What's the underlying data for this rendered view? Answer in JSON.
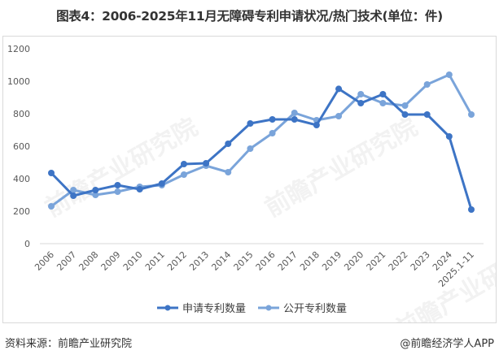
{
  "title": "图表4：2006-2025年11月无障碍专利申请状况/热门技术(单位：件)",
  "footer": {
    "source": "资料来源：前瞻产业研究院",
    "credit": "@前瞻经济学人APP"
  },
  "watermark": "前瞻产业研究院",
  "colors": {
    "application": "#3d74c5",
    "publication": "#7aa4da",
    "grid": "#d9d9d9",
    "axis_text": "#595959"
  },
  "chart_data": {
    "type": "line",
    "title": "图表4：2006-2025年11月无障碍专利申请状况/热门技术(单位：件)",
    "xlabel": "",
    "ylabel": "",
    "ylim": [
      0,
      1200
    ],
    "yticks": [
      0,
      200,
      400,
      600,
      800,
      1000,
      1200
    ],
    "grid": false,
    "legend_position": "bottom",
    "categories": [
      "2006",
      "2007",
      "2008",
      "2009",
      "2010",
      "2011",
      "2012",
      "2013",
      "2014",
      "2015",
      "2016",
      "2017",
      "2018",
      "2019",
      "2020",
      "2021",
      "2022",
      "2023",
      "2024",
      "2025.1-11"
    ],
    "series": [
      {
        "name": "申请专利数量",
        "values": [
          435,
          295,
          330,
          360,
          335,
          370,
          490,
          495,
          615,
          740,
          765,
          765,
          730,
          953,
          865,
          920,
          795,
          795,
          660,
          210
        ]
      },
      {
        "name": "公开专利数量",
        "values": [
          230,
          330,
          300,
          320,
          350,
          360,
          425,
          480,
          440,
          585,
          680,
          805,
          760,
          785,
          920,
          865,
          850,
          980,
          1040,
          795
        ]
      }
    ]
  }
}
